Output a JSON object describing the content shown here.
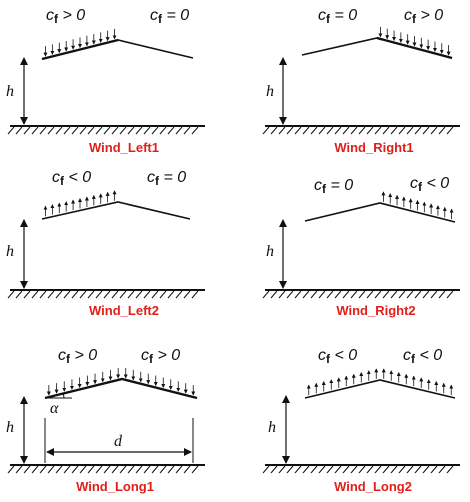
{
  "symbols": {
    "h": "h",
    "d": "d",
    "alpha": "α"
  },
  "panels": [
    {
      "caption": "Wind_Left1",
      "left_label": [
        "c",
        "f",
        " > 0"
      ],
      "right_label": [
        "c",
        "f",
        " = 0"
      ]
    },
    {
      "caption": "Wind_Right1",
      "left_label": [
        "c",
        "f",
        " = 0"
      ],
      "right_label": [
        "c",
        "f",
        " > 0"
      ]
    },
    {
      "caption": "Wind_Left2",
      "left_label": [
        "c",
        "f",
        " < 0"
      ],
      "right_label": [
        "c",
        "f",
        " = 0"
      ]
    },
    {
      "caption": "Wind_Right2",
      "left_label": [
        "c",
        "f",
        " = 0"
      ],
      "right_label": [
        "c",
        "f",
        " < 0"
      ]
    },
    {
      "caption": "Wind_Long1",
      "left_label": [
        "c",
        "f",
        " > 0"
      ],
      "right_label": [
        "c",
        "f",
        " > 0"
      ]
    },
    {
      "caption": "Wind_Long2",
      "left_label": [
        "c",
        "f",
        " < 0"
      ],
      "right_label": [
        "c",
        "f",
        " < 0"
      ]
    }
  ],
  "colors": {
    "caption": "#e0201a",
    "line": "#111111"
  }
}
